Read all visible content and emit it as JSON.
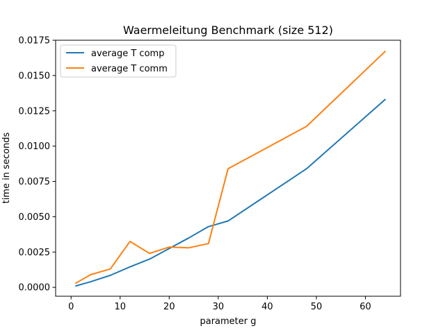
{
  "chart_data": {
    "type": "line",
    "title": "Waermeleitung Benchmark (size 512)",
    "xlabel": "parameter g",
    "ylabel": "time in seconds",
    "xlim": [
      -3.15,
      67.15
    ],
    "ylim": [
      -0.00063,
      0.0175
    ],
    "xticks": [
      0,
      10,
      20,
      30,
      40,
      50,
      60
    ],
    "yticks": [
      0.0,
      0.0025,
      0.005,
      0.0075,
      0.01,
      0.0125,
      0.015,
      0.0175
    ],
    "ytick_labels": [
      "0.0000",
      "0.0025",
      "0.0050",
      "0.0075",
      "0.0100",
      "0.0125",
      "0.0150",
      "0.0175"
    ],
    "grid": false,
    "legend_position": "top-left",
    "x": [
      1,
      4,
      8,
      12,
      16,
      20,
      24,
      28,
      32,
      48,
      64
    ],
    "series": [
      {
        "name": "average T comp",
        "color": "#1f77b4",
        "values": [
          0.0001,
          0.0004,
          0.00085,
          0.00145,
          0.002,
          0.00275,
          0.0035,
          0.0043,
          0.0047,
          0.0084,
          0.0133
        ]
      },
      {
        "name": "average T comm",
        "color": "#ff7f0e",
        "values": [
          0.0003,
          0.0009,
          0.0013,
          0.00325,
          0.0024,
          0.00285,
          0.0028,
          0.0031,
          0.0084,
          0.0114,
          0.0167
        ]
      }
    ]
  }
}
